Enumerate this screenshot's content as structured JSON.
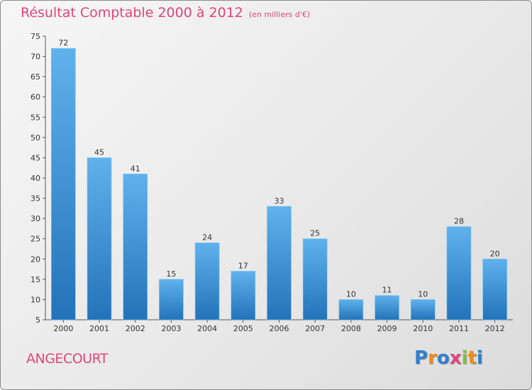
{
  "title": "Résultat Comptable 2000 à 2012",
  "subtitle": "(en milliers d'€)",
  "commune": "ANGECOURT",
  "brand": {
    "letters": [
      "P",
      "r",
      "o",
      "x",
      "i",
      "t",
      "i"
    ],
    "colors": [
      "#2f7fd0",
      "#f08a1c",
      "#2f7fd0",
      "#e0457b",
      "#7cc242",
      "#f08a1c",
      "#2f7fd0"
    ]
  },
  "colors": {
    "bar_light": "#5fb2ec",
    "bar_dark": "#2273b9",
    "title": "#e0457b",
    "axis": "#555555"
  },
  "chart_data": {
    "type": "bar",
    "title": "Résultat Comptable 2000 à 2012",
    "subtitle": "(en milliers d'€)",
    "xlabel": "",
    "ylabel": "",
    "categories": [
      "2000",
      "2001",
      "2002",
      "2003",
      "2004",
      "2005",
      "2006",
      "2007",
      "2008",
      "2009",
      "2010",
      "2011",
      "2012"
    ],
    "values": [
      72,
      45,
      41,
      15,
      24,
      17,
      33,
      25,
      10,
      11,
      10,
      28,
      20
    ],
    "ylim": [
      5,
      75
    ],
    "yticks": [
      5,
      10,
      15,
      20,
      25,
      30,
      35,
      40,
      45,
      50,
      55,
      60,
      65,
      70,
      75
    ],
    "grid": false,
    "data_labels": true
  }
}
